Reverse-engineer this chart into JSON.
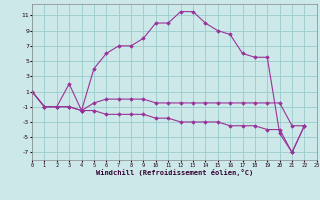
{
  "xlabel": "Windchill (Refroidissement éolien,°C)",
  "x": [
    0,
    1,
    2,
    3,
    4,
    5,
    6,
    7,
    8,
    9,
    10,
    11,
    12,
    13,
    14,
    15,
    16,
    17,
    18,
    19,
    20,
    21,
    22,
    23
  ],
  "line1": [
    1,
    -1,
    -1,
    2,
    -1.5,
    4,
    6,
    7,
    7,
    8,
    10,
    10,
    11.5,
    11.5,
    10,
    9,
    8.5,
    6,
    5.5,
    5.5,
    -4.5,
    -7,
    -3.5,
    null
  ],
  "line2": [
    1,
    -1,
    -1,
    -1,
    -1.5,
    -0.5,
    0,
    0,
    0,
    0,
    -0.5,
    -0.5,
    -0.5,
    -0.5,
    -0.5,
    -0.5,
    -0.5,
    -0.5,
    -0.5,
    -0.5,
    -0.5,
    -3.5,
    -3.5,
    null
  ],
  "line3": [
    1,
    -1,
    -1,
    -1,
    -1.5,
    -1.5,
    -2,
    -2,
    -2,
    -2,
    -2.5,
    -2.5,
    -3,
    -3,
    -3,
    -3,
    -3.5,
    -3.5,
    -3.5,
    -4,
    -4,
    -7,
    -3.5,
    null
  ],
  "bg_color": "#cce8e8",
  "grid_color": "#99cccc",
  "line_color": "#993399",
  "ylim": [
    -8,
    12.5
  ],
  "yticks": [
    -7,
    -5,
    -3,
    -1,
    1,
    3,
    5,
    7,
    9,
    11
  ],
  "xlim": [
    0,
    23
  ]
}
